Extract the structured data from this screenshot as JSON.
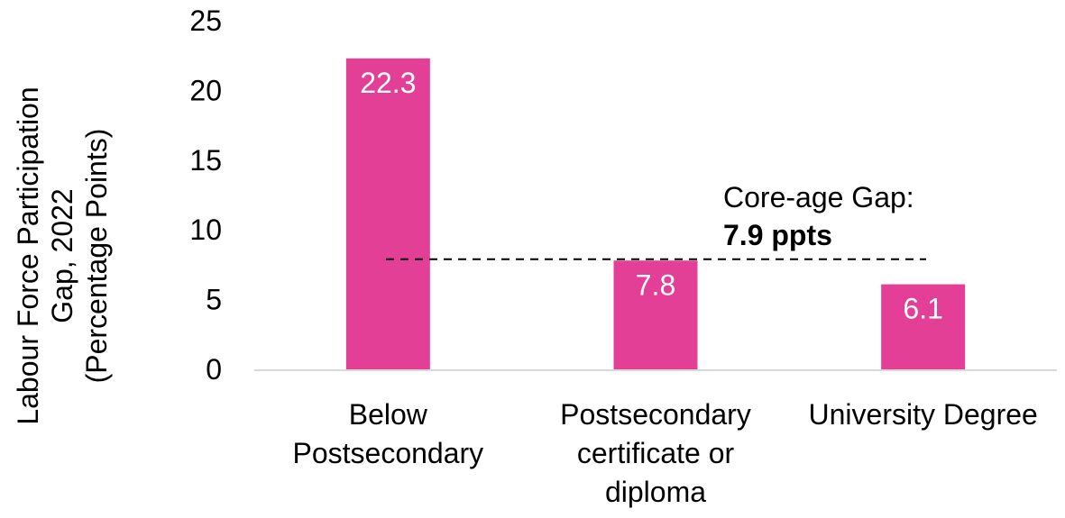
{
  "chart_data": {
    "type": "bar",
    "categories": [
      [
        "Below",
        "Postsecondary"
      ],
      [
        "Postsecondary",
        "certificate or",
        "diploma"
      ],
      [
        "University Degree"
      ]
    ],
    "values": [
      22.3,
      7.8,
      6.1
    ],
    "data_labels": [
      "22.3",
      "7.8",
      "6.1"
    ],
    "ylabel": [
      "Labour Force Participation",
      "Gap, 2022",
      "(Percentage Points)"
    ],
    "ylim": [
      0,
      25
    ],
    "yticks": [
      0,
      5,
      10,
      15,
      20,
      25
    ],
    "ytick_labels": [
      "0",
      "5",
      "10",
      "15",
      "20",
      "25"
    ],
    "grid": false,
    "bar_color": "#E43F96",
    "reference_line": {
      "value": 7.9,
      "style": "dashed",
      "label_line1": "Core-age Gap:",
      "label_line2": "7.9 ppts"
    }
  }
}
